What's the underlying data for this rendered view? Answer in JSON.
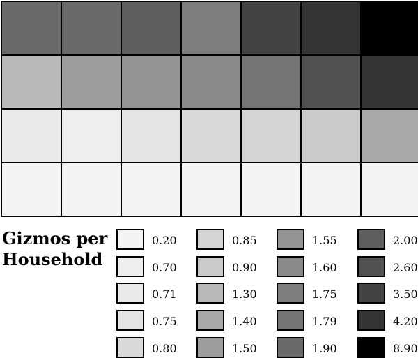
{
  "chart_data": {
    "type": "heatmap",
    "title": "",
    "legend_title": [
      "Gizmos per",
      "Household"
    ],
    "legend_placement": "bottom",
    "rows": 4,
    "cols": 7,
    "values": [
      [
        1.9,
        1.9,
        2.0,
        1.75,
        3.5,
        4.2,
        8.9
      ],
      [
        1.3,
        1.5,
        1.55,
        1.6,
        1.79,
        2.6,
        4.2
      ],
      [
        0.71,
        0.7,
        0.75,
        0.8,
        0.85,
        0.9,
        1.4
      ],
      [
        0.2,
        0.2,
        0.2,
        0.2,
        0.2,
        0.2,
        0.2
      ]
    ],
    "legend": {
      "columns": [
        [
          {
            "label": "0.20",
            "value": 0.2,
            "color": "#f4f4f4"
          },
          {
            "label": "0.70",
            "value": 0.7,
            "color": "#eeeeee"
          },
          {
            "label": "0.71",
            "value": 0.71,
            "color": "#eaeaea"
          },
          {
            "label": "0.75",
            "value": 0.75,
            "color": "#e4e4e4"
          },
          {
            "label": "0.80",
            "value": 0.8,
            "color": "#dadada"
          }
        ],
        [
          {
            "label": "0.85",
            "value": 0.85,
            "color": "#d4d4d4"
          },
          {
            "label": "0.90",
            "value": 0.9,
            "color": "#cbcbcb"
          },
          {
            "label": "1.30",
            "value": 1.3,
            "color": "#b9b9b9"
          },
          {
            "label": "1.40",
            "value": 1.4,
            "color": "#a9a9a9"
          },
          {
            "label": "1.50",
            "value": 1.5,
            "color": "#9d9d9d"
          }
        ],
        [
          {
            "label": "1.55",
            "value": 1.55,
            "color": "#939393"
          },
          {
            "label": "1.60",
            "value": 1.6,
            "color": "#898989"
          },
          {
            "label": "1.75",
            "value": 1.75,
            "color": "#7e7e7e"
          },
          {
            "label": "1.79",
            "value": 1.79,
            "color": "#747474"
          },
          {
            "label": "1.90",
            "value": 1.9,
            "color": "#6a6a6a"
          }
        ],
        [
          {
            "label": "2.00",
            "value": 2.0,
            "color": "#5e5e5e"
          },
          {
            "label": "2.60",
            "value": 2.6,
            "color": "#515151"
          },
          {
            "label": "3.50",
            "value": 3.5,
            "color": "#434343"
          },
          {
            "label": "4.20",
            "value": 4.2,
            "color": "#343434"
          },
          {
            "label": "8.90",
            "value": 8.9,
            "color": "#000000"
          }
        ]
      ]
    }
  }
}
